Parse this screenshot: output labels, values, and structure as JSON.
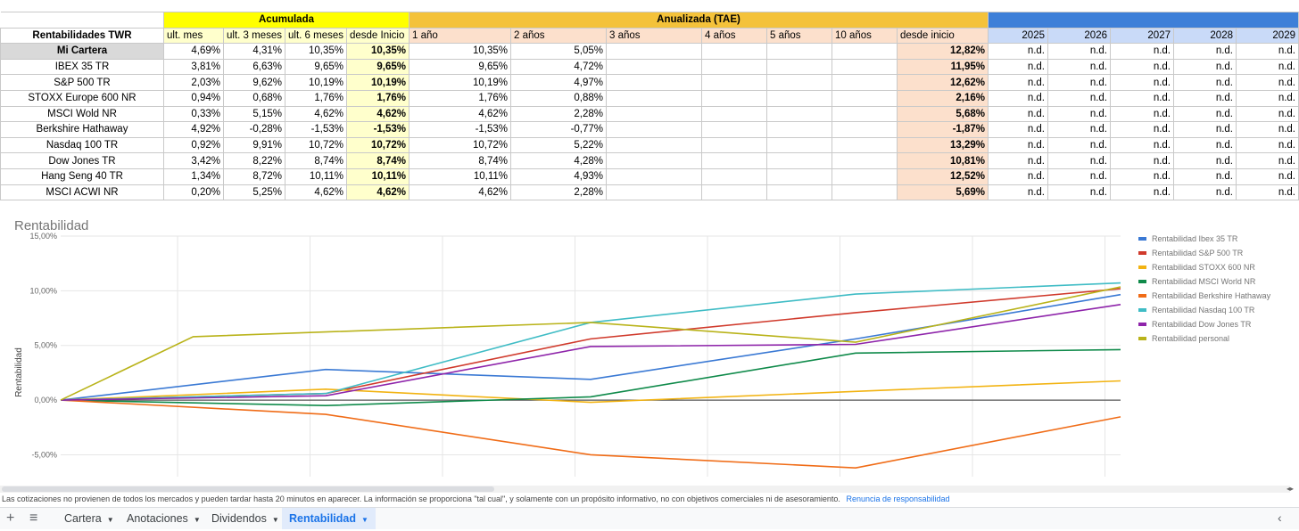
{
  "table": {
    "group_headers": {
      "acumulada": "Acumulada",
      "anualizada": "Anualizada (TAE)"
    },
    "row_label_header": "Rentabilidades TWR",
    "columns": [
      "ult. mes",
      "ult. 3 meses",
      "ult. 6 meses",
      "desde Inicio",
      "1 año",
      "2 años",
      "3 años",
      "4 años",
      "5 años",
      "10 años",
      "desde inicio",
      "2025",
      "2026",
      "2027",
      "2028",
      "2029"
    ],
    "rows": [
      {
        "name": "Mi Cartera",
        "v": [
          "4,69%",
          "4,31%",
          "10,35%",
          "10,35%",
          "10,35%",
          "5,05%",
          "",
          "",
          "",
          "",
          "12,82%",
          "n.d.",
          "n.d.",
          "n.d.",
          "n.d.",
          "n.d."
        ]
      },
      {
        "name": "IBEX 35 TR",
        "v": [
          "3,81%",
          "6,63%",
          "9,65%",
          "9,65%",
          "9,65%",
          "4,72%",
          "",
          "",
          "",
          "",
          "11,95%",
          "n.d.",
          "n.d.",
          "n.d.",
          "n.d.",
          "n.d."
        ]
      },
      {
        "name": "S&P 500 TR",
        "v": [
          "2,03%",
          "9,62%",
          "10,19%",
          "10,19%",
          "10,19%",
          "4,97%",
          "",
          "",
          "",
          "",
          "12,62%",
          "n.d.",
          "n.d.",
          "n.d.",
          "n.d.",
          "n.d."
        ]
      },
      {
        "name": "STOXX Europe 600 NR",
        "v": [
          "0,94%",
          "0,68%",
          "1,76%",
          "1,76%",
          "1,76%",
          "0,88%",
          "",
          "",
          "",
          "",
          "2,16%",
          "n.d.",
          "n.d.",
          "n.d.",
          "n.d.",
          "n.d."
        ]
      },
      {
        "name": "MSCI Wold NR",
        "v": [
          "0,33%",
          "5,15%",
          "4,62%",
          "4,62%",
          "4,62%",
          "2,28%",
          "",
          "",
          "",
          "",
          "5,68%",
          "n.d.",
          "n.d.",
          "n.d.",
          "n.d.",
          "n.d."
        ]
      },
      {
        "name": "Berkshire Hathaway",
        "v": [
          "4,92%",
          "-0,28%",
          "-1,53%",
          "-1,53%",
          "-1,53%",
          "-0,77%",
          "",
          "",
          "",
          "",
          "-1,87%",
          "n.d.",
          "n.d.",
          "n.d.",
          "n.d.",
          "n.d."
        ]
      },
      {
        "name": "Nasdaq 100 TR",
        "v": [
          "0,92%",
          "9,91%",
          "10,72%",
          "10,72%",
          "10,72%",
          "5,22%",
          "",
          "",
          "",
          "",
          "13,29%",
          "n.d.",
          "n.d.",
          "n.d.",
          "n.d.",
          "n.d."
        ]
      },
      {
        "name": "Dow Jones TR",
        "v": [
          "3,42%",
          "8,22%",
          "8,74%",
          "8,74%",
          "8,74%",
          "4,28%",
          "",
          "",
          "",
          "",
          "10,81%",
          "n.d.",
          "n.d.",
          "n.d.",
          "n.d.",
          "n.d."
        ]
      },
      {
        "name": "Hang Seng 40 TR",
        "v": [
          "1,34%",
          "8,72%",
          "10,11%",
          "10,11%",
          "10,11%",
          "4,93%",
          "",
          "",
          "",
          "",
          "12,52%",
          "n.d.",
          "n.d.",
          "n.d.",
          "n.d.",
          "n.d."
        ]
      },
      {
        "name": "MSCI ACWI NR",
        "v": [
          "0,20%",
          "5,25%",
          "4,62%",
          "4,62%",
          "4,62%",
          "2,28%",
          "",
          "",
          "",
          "",
          "5,69%",
          "n.d.",
          "n.d.",
          "n.d.",
          "n.d.",
          "n.d."
        ]
      }
    ]
  },
  "chart_data": {
    "type": "line",
    "title": "Rentabilidad",
    "ylabel": "Rentabilidad",
    "ylim": [
      -7,
      15
    ],
    "yticks": [
      "15,00%",
      "10,00%",
      "5,00%",
      "0,00%",
      "-5,00%"
    ],
    "ytick_values": [
      15,
      10,
      5,
      0,
      -5
    ],
    "x": [
      0,
      1,
      2,
      3,
      4
    ],
    "legend_position": "right",
    "grid": true,
    "series": [
      {
        "name": "Rentabilidad Ibex 35 TR",
        "color": "#3a79d4",
        "x": [
          0,
          1,
          2,
          3,
          4
        ],
        "values": [
          0,
          2.8,
          1.9,
          5.6,
          9.65
        ]
      },
      {
        "name": "Rentabilidad S&P 500 TR",
        "color": "#d03a2c",
        "x": [
          0,
          1,
          2,
          3,
          4
        ],
        "values": [
          0,
          0.6,
          5.6,
          8.0,
          10.19
        ]
      },
      {
        "name": "Rentabilidad STOXX 600 NR",
        "color": "#f2b312",
        "x": [
          0,
          1,
          2,
          3,
          4
        ],
        "values": [
          0,
          1.0,
          -0.2,
          0.8,
          1.76
        ]
      },
      {
        "name": "Rentabilidad MSCI World NR",
        "color": "#0f8a4a",
        "x": [
          0,
          1,
          2,
          3,
          4
        ],
        "values": [
          0,
          -0.5,
          0.3,
          4.3,
          4.62
        ]
      },
      {
        "name": "Rentabilidad Berkshire Hathaway",
        "color": "#f06c17",
        "x": [
          0,
          1,
          2,
          3,
          4
        ],
        "values": [
          0,
          -1.3,
          -5.0,
          -6.2,
          -1.53
        ]
      },
      {
        "name": "Rentabilidad Nasdaq 100 TR",
        "color": "#3fbcc5",
        "x": [
          0,
          1,
          2,
          3,
          4
        ],
        "values": [
          0,
          0.6,
          7.1,
          9.7,
          10.72
        ]
      },
      {
        "name": "Rentabilidad Dow Jones TR",
        "color": "#8e24aa",
        "x": [
          0,
          1,
          2,
          3,
          4
        ],
        "values": [
          0,
          0.4,
          4.9,
          5.1,
          8.74
        ]
      },
      {
        "name": "Rentabilidad personal",
        "color": "#b9b31a",
        "x": [
          0,
          0.5,
          2,
          3,
          4
        ],
        "values": [
          0,
          5.8,
          7.1,
          5.3,
          10.35
        ]
      }
    ]
  },
  "footer": {
    "disclaimer": "Las cotizaciones no provienen de todos los mercados y pueden tardar hasta 20 minutos en aparecer. La información se proporciona \"tal cual\", y solamente con un propósito informativo, no con objetivos comerciales ni de asesoramiento.",
    "disclaimer_link": "Renuncia de responsabilidad"
  },
  "tabs": {
    "add_icon": "+",
    "list_icon": "≡",
    "items": [
      {
        "label": "Cartera",
        "active": false
      },
      {
        "label": "Anotaciones",
        "active": false
      },
      {
        "label": "Dividendos",
        "active": false
      },
      {
        "label": "Rentabilidad",
        "active": true
      }
    ],
    "explore_icon": "‹"
  }
}
